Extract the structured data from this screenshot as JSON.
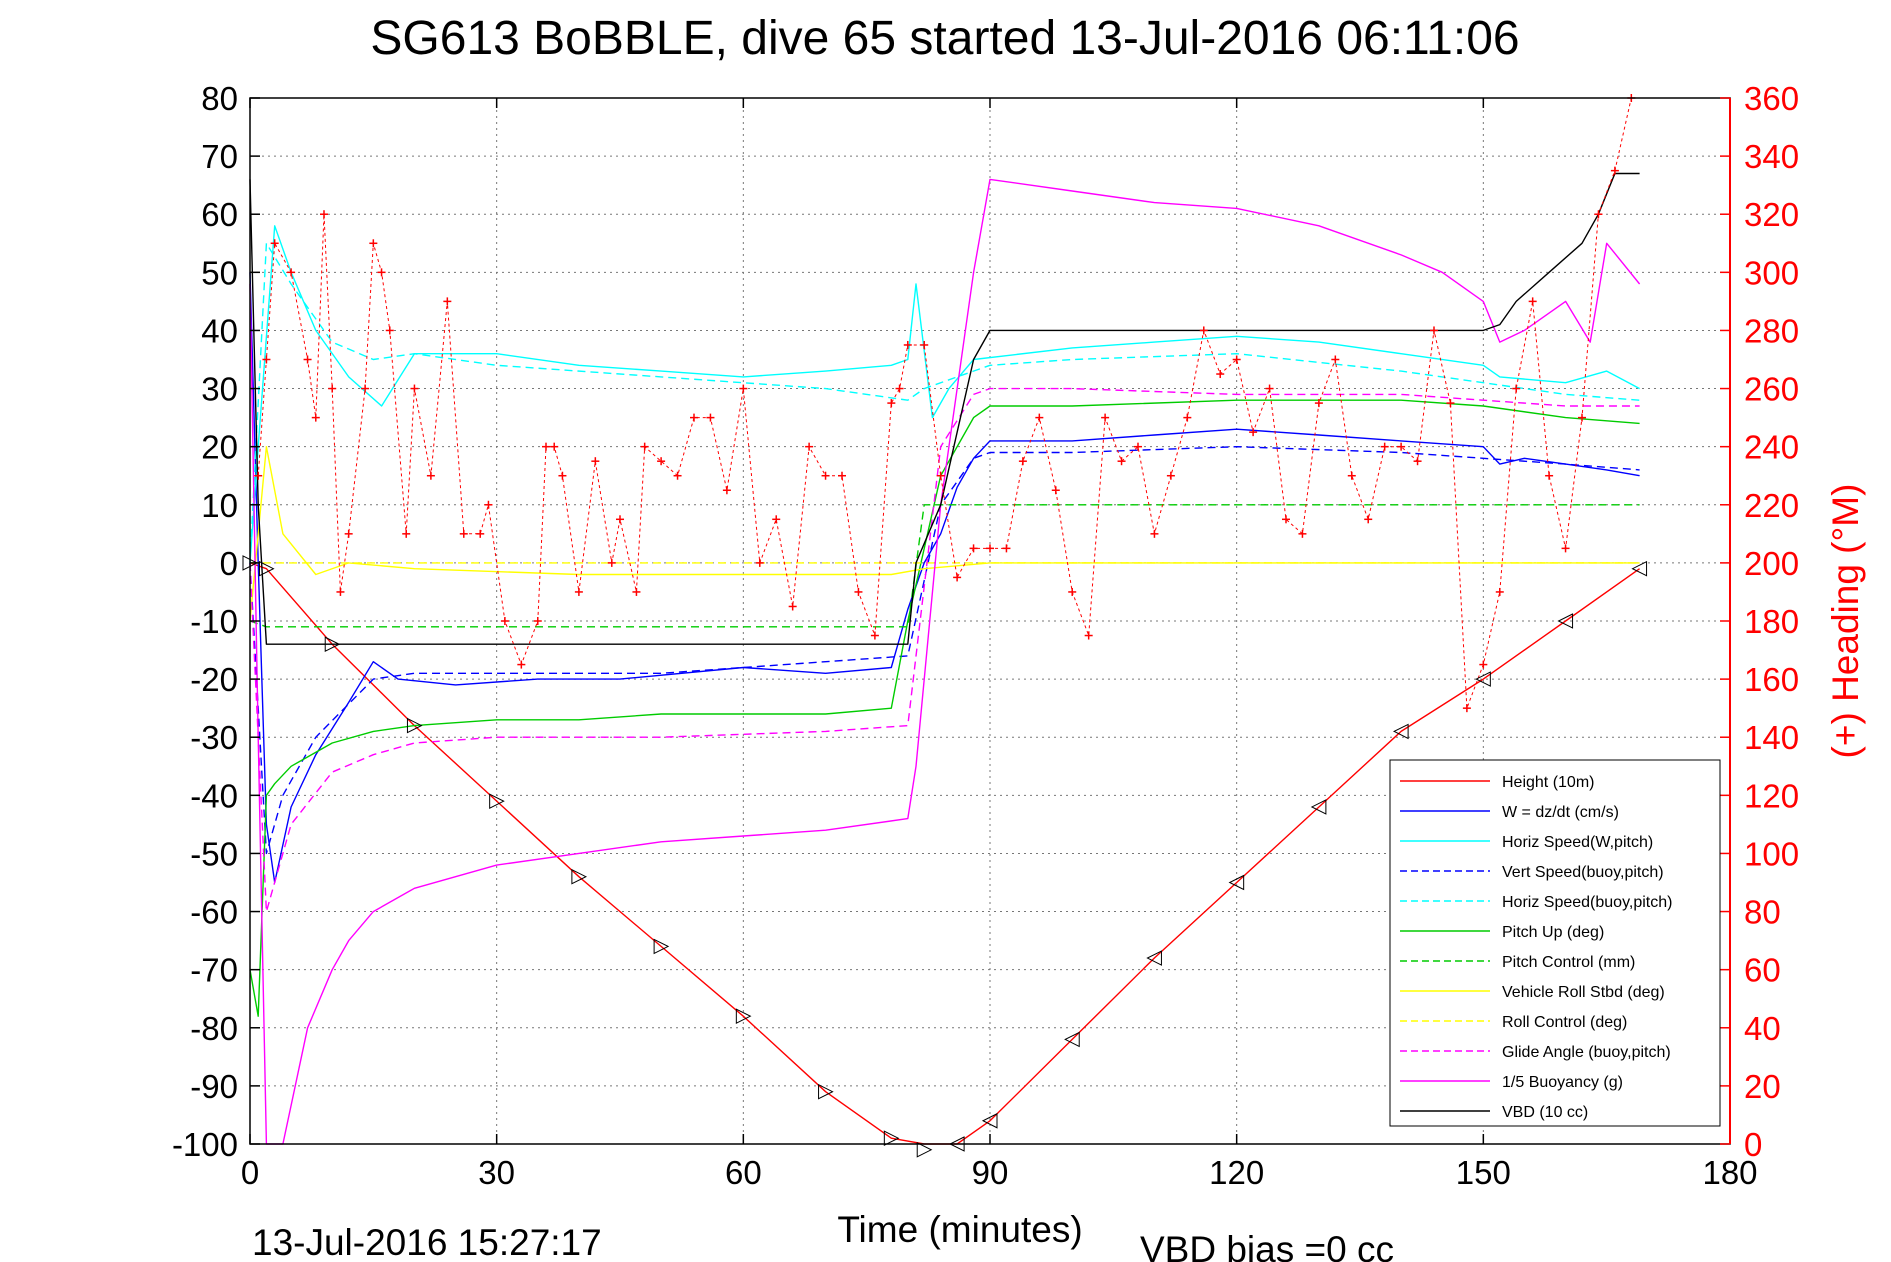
{
  "chart_data": {
    "type": "line",
    "title": "SG613 BoBBLE, dive 65 started 13-Jul-2016 06:11:06",
    "xlabel": "Time (minutes)",
    "ylabel_right": "(+) Heading (°M)",
    "footer_date": "13-Jul-2016 15:27:17",
    "footer_bias": "VBD bias =0 cc",
    "xlim": [
      0,
      180
    ],
    "ylim": [
      -100,
      80
    ],
    "ylim_right": [
      0,
      360
    ],
    "x_ticks": [
      "0",
      "30",
      "60",
      "90",
      "120",
      "150",
      "180"
    ],
    "y_ticks": [
      "80",
      "70",
      "60",
      "50",
      "40",
      "30",
      "20",
      "10",
      "0",
      "-10",
      "-20",
      "-30",
      "-40",
      "-50",
      "-60",
      "-70",
      "-80",
      "-90",
      "-100"
    ],
    "y_ticks_right": [
      "360",
      "340",
      "320",
      "300",
      "280",
      "260",
      "240",
      "220",
      "200",
      "180",
      "160",
      "140",
      "120",
      "100",
      "80",
      "60",
      "40",
      "20",
      "0"
    ],
    "grid": true,
    "legend_position": "bottom-right",
    "series": [
      {
        "name": "Height (10m)",
        "color": "#ff0000",
        "style": "solid",
        "x": [
          0,
          2,
          10,
          20,
          30,
          40,
          50,
          60,
          70,
          78,
          82,
          86,
          90,
          100,
          110,
          120,
          130,
          140,
          150,
          160,
          169
        ],
        "y": [
          0,
          -1,
          -14,
          -28,
          -41,
          -54,
          -66,
          -78,
          -91,
          -99,
          -101,
          -100,
          -96,
          -82,
          -68,
          -55,
          -42,
          -29,
          -20,
          -10,
          -1
        ]
      },
      {
        "name": "W = dz/dt (cm/s)",
        "color": "#0000ff",
        "style": "solid",
        "x": [
          0,
          1,
          2,
          3,
          5,
          8,
          12,
          15,
          18,
          25,
          35,
          45,
          60,
          70,
          78,
          80,
          82,
          84,
          86,
          88,
          90,
          100,
          110,
          120,
          130,
          140,
          150,
          152,
          155,
          160,
          165,
          169
        ],
        "y": [
          50,
          0,
          -45,
          -55,
          -42,
          -33,
          -24,
          -17,
          -20,
          -21,
          -20,
          -20,
          -18,
          -19,
          -18,
          -8,
          0,
          5,
          13,
          18,
          21,
          21,
          22,
          23,
          22,
          21,
          20,
          17,
          18,
          17,
          16,
          15
        ]
      },
      {
        "name": "Horiz Speed(W,pitch)",
        "color": "#00ffff",
        "style": "solid",
        "x": [
          0,
          1,
          3,
          5,
          8,
          12,
          16,
          20,
          30,
          40,
          50,
          60,
          70,
          78,
          80,
          81,
          83,
          85,
          88,
          100,
          110,
          120,
          130,
          140,
          150,
          152,
          160,
          165,
          169
        ],
        "y": [
          0,
          20,
          58,
          50,
          40,
          32,
          27,
          36,
          36,
          34,
          33,
          32,
          33,
          34,
          35,
          48,
          25,
          30,
          35,
          37,
          38,
          39,
          38,
          36,
          34,
          32,
          31,
          33,
          30
        ]
      },
      {
        "name": "Vert Speed(buoy,pitch)",
        "color": "#0000ff",
        "style": "dashed",
        "x": [
          0,
          2,
          4,
          8,
          15,
          20,
          30,
          50,
          70,
          80,
          84,
          88,
          90,
          100,
          120,
          140,
          150,
          160,
          169
        ],
        "y": [
          0,
          -50,
          -40,
          -30,
          -20,
          -19,
          -19,
          -19,
          -17,
          -16,
          10,
          18,
          19,
          19,
          20,
          19,
          18,
          17,
          16
        ]
      },
      {
        "name": "Horiz Speed(buoy,pitch)",
        "color": "#00ffff",
        "style": "dashed",
        "x": [
          0,
          2,
          5,
          10,
          15,
          20,
          30,
          50,
          70,
          80,
          82,
          86,
          90,
          100,
          120,
          140,
          150,
          160,
          169
        ],
        "y": [
          0,
          55,
          48,
          38,
          35,
          36,
          34,
          32,
          30,
          28,
          30,
          32,
          34,
          35,
          36,
          33,
          31,
          29,
          28
        ]
      },
      {
        "name": "Pitch Up (deg)",
        "color": "#00cc00",
        "style": "solid",
        "x": [
          0,
          1,
          2,
          3,
          5,
          10,
          15,
          20,
          30,
          40,
          50,
          60,
          70,
          78,
          80,
          84,
          88,
          90,
          100,
          120,
          140,
          150,
          160,
          169
        ],
        "y": [
          -70,
          -78,
          -40,
          -38,
          -35,
          -31,
          -29,
          -28,
          -27,
          -27,
          -26,
          -26,
          -26,
          -25,
          -10,
          15,
          25,
          27,
          27,
          28,
          28,
          27,
          25,
          24
        ]
      },
      {
        "name": "Pitch Control (mm)",
        "color": "#00cc00",
        "style": "dashed",
        "x": [
          0,
          2,
          80,
          82,
          169
        ],
        "y": [
          -10,
          -11,
          -11,
          10,
          10
        ]
      },
      {
        "name": "Vehicle Roll Stbd (deg)",
        "color": "#ffff00",
        "style": "solid",
        "x": [
          0,
          2,
          4,
          8,
          12,
          20,
          40,
          60,
          78,
          82,
          90,
          100,
          120,
          140,
          150,
          160,
          169
        ],
        "y": [
          -10,
          20,
          5,
          -2,
          0,
          -1,
          -2,
          -2,
          -2,
          -1,
          0,
          0,
          0,
          0,
          0,
          0,
          0
        ]
      },
      {
        "name": "Roll Control (deg)",
        "color": "#ffff00",
        "style": "dashed",
        "x": [
          0,
          2,
          169
        ],
        "y": [
          0,
          0,
          0
        ]
      },
      {
        "name": "Glide Angle (buoy,pitch)",
        "color": "#ff00ff",
        "style": "dashed",
        "x": [
          0,
          2,
          5,
          10,
          15,
          20,
          30,
          50,
          70,
          80,
          84,
          88,
          90,
          100,
          120,
          140,
          150,
          160,
          169
        ],
        "y": [
          0,
          -60,
          -45,
          -36,
          -33,
          -31,
          -30,
          -30,
          -29,
          -28,
          20,
          29,
          30,
          30,
          29,
          29,
          28,
          27,
          27
        ]
      },
      {
        "name": "1/5 Buoyancy (g)",
        "color": "#ff00ff",
        "style": "solid",
        "x": [
          0,
          1,
          2,
          3,
          4,
          7,
          10,
          12,
          15,
          20,
          30,
          40,
          50,
          60,
          70,
          80,
          81,
          84,
          88,
          90,
          100,
          110,
          120,
          130,
          140,
          145,
          150,
          152,
          155,
          160,
          163,
          165,
          169
        ],
        "y": [
          48,
          -30,
          -100,
          -100,
          -100,
          -80,
          -70,
          -65,
          -60,
          -56,
          -52,
          -50,
          -48,
          -47,
          -46,
          -44,
          -35,
          10,
          50,
          66,
          64,
          62,
          61,
          58,
          53,
          50,
          45,
          38,
          40,
          45,
          38,
          55,
          48
        ]
      },
      {
        "name": "VBD (10 cc)",
        "color": "#000000",
        "style": "solid",
        "x": [
          0,
          1,
          2,
          3,
          80,
          81,
          84,
          88,
          90,
          100,
          150,
          152,
          154,
          158,
          162,
          164,
          166,
          169
        ],
        "y": [
          66,
          10,
          -14,
          -14,
          -14,
          0,
          10,
          35,
          40,
          40,
          40,
          41,
          45,
          50,
          55,
          60,
          67,
          67
        ]
      }
    ],
    "heading_series": {
      "name": "(+) Heading (°M)",
      "color": "#ff0000",
      "marker": "+",
      "x": [
        1,
        2,
        3,
        5,
        7,
        8,
        9,
        10,
        11,
        12,
        14,
        15,
        16,
        17,
        19,
        20,
        22,
        24,
        26,
        28,
        29,
        31,
        33,
        35,
        36,
        37,
        38,
        40,
        42,
        44,
        45,
        47,
        48,
        50,
        52,
        54,
        56,
        58,
        60,
        62,
        64,
        66,
        68,
        70,
        72,
        74,
        76,
        78,
        79,
        80,
        82,
        84,
        86,
        88,
        90,
        92,
        94,
        96,
        98,
        100,
        102,
        104,
        106,
        108,
        110,
        112,
        114,
        116,
        118,
        120,
        122,
        124,
        126,
        128,
        130,
        132,
        134,
        136,
        138,
        140,
        142,
        144,
        146,
        148,
        150,
        152,
        154,
        156,
        158,
        160,
        162,
        164,
        166,
        168
      ],
      "y": [
        230,
        270,
        310,
        300,
        270,
        250,
        320,
        260,
        190,
        210,
        260,
        310,
        300,
        280,
        210,
        260,
        230,
        290,
        210,
        210,
        220,
        180,
        165,
        180,
        240,
        240,
        230,
        190,
        235,
        200,
        215,
        190,
        240,
        235,
        230,
        250,
        250,
        225,
        260,
        200,
        215,
        185,
        240,
        230,
        230,
        190,
        175,
        255,
        260,
        275,
        275,
        230,
        195,
        205,
        205,
        205,
        235,
        250,
        225,
        190,
        175,
        250,
        235,
        240,
        210,
        230,
        250,
        280,
        265,
        270,
        245,
        260,
        215,
        210,
        255,
        270,
        230,
        215,
        240,
        240,
        235,
        280,
        255,
        150,
        165,
        190,
        260,
        290,
        230,
        205,
        250,
        320,
        335,
        360
      ]
    }
  }
}
